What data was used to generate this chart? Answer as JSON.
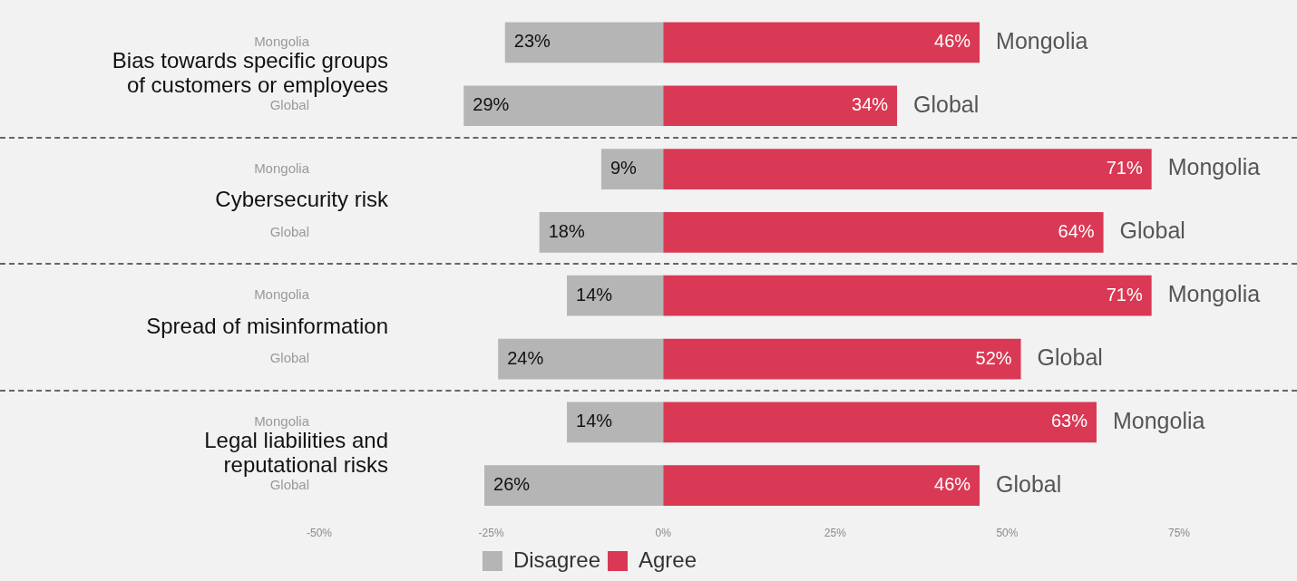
{
  "chart_data": {
    "type": "bar",
    "orientation": "horizontal",
    "categories": [
      "Mongolia",
      "Global",
      "Mongolia",
      "Global",
      "Mongolia",
      "Global",
      "Mongolia",
      "Global"
    ],
    "series": [
      {
        "name": "Disagree",
        "color": "#b5b5b5",
        "base": [
          -23,
          -29,
          -9,
          -18,
          -14,
          -24,
          -14,
          -26
        ],
        "values": [
          23,
          29,
          9,
          18,
          14,
          24,
          14,
          26
        ],
        "value_labels": [
          "23%",
          "29%",
          "9%",
          "18%",
          "14%",
          "24%",
          "14%",
          "26%"
        ]
      },
      {
        "name": "Agree",
        "color": "#d93954",
        "values": [
          46,
          34,
          71,
          64,
          71,
          52,
          63,
          46
        ],
        "value_labels": [
          "46%",
          "34%",
          "71%",
          "64%",
          "71%",
          "52%",
          "63%",
          "46%"
        ]
      }
    ],
    "xlim": [
      -50,
      75
    ],
    "xticks": [
      {
        "value": -50,
        "label": "-50%"
      },
      {
        "value": -25,
        "label": "-25%"
      },
      {
        "value": 0,
        "label": "0%"
      },
      {
        "value": 25,
        "label": "25%"
      },
      {
        "value": 50,
        "label": "50%"
      },
      {
        "value": 75,
        "label": "75%"
      }
    ],
    "legend": "bottom",
    "annotations": [
      "Bias towards specific groups\nof customers or employees",
      "Cybersecurity risk",
      "Spread of misinformation",
      "Legal liabilities and\nreputational risks"
    ]
  }
}
